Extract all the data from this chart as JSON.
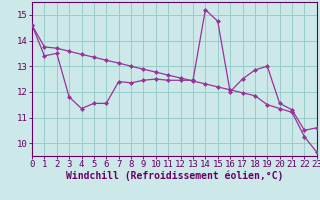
{
  "xlabel": "Windchill (Refroidissement éolien,°C)",
  "bg_color": "#cce8e8",
  "line_color": "#993399",
  "grid_color": "#99cccc",
  "axis_color": "#660066",
  "x_data": [
    0,
    1,
    2,
    3,
    4,
    5,
    6,
    7,
    8,
    9,
    10,
    11,
    12,
    13,
    14,
    15,
    16,
    17,
    18,
    19,
    20,
    21,
    22,
    23
  ],
  "line1_y": [
    14.6,
    13.4,
    13.5,
    11.8,
    11.35,
    11.55,
    11.55,
    12.4,
    12.35,
    12.45,
    12.5,
    12.45,
    12.45,
    12.45,
    15.2,
    14.75,
    12.0,
    12.5,
    12.85,
    13.0,
    11.55,
    11.3,
    10.5,
    10.6
  ],
  "line2_y": [
    14.6,
    13.75,
    13.7,
    13.58,
    13.46,
    13.35,
    13.23,
    13.12,
    13.0,
    12.88,
    12.77,
    12.65,
    12.54,
    12.42,
    12.31,
    12.19,
    12.08,
    11.96,
    11.85,
    11.5,
    11.35,
    11.2,
    10.25,
    9.65
  ],
  "xlim": [
    0,
    23
  ],
  "ylim": [
    9.5,
    15.5
  ],
  "yticks": [
    10,
    11,
    12,
    13,
    14,
    15
  ],
  "xticks": [
    0,
    1,
    2,
    3,
    4,
    5,
    6,
    7,
    8,
    9,
    10,
    11,
    12,
    13,
    14,
    15,
    16,
    17,
    18,
    19,
    20,
    21,
    22,
    23
  ],
  "font_size": 6.5,
  "xlabel_fontsize": 7.0,
  "marker": "D",
  "marker_size": 2.0,
  "linewidth": 0.9
}
